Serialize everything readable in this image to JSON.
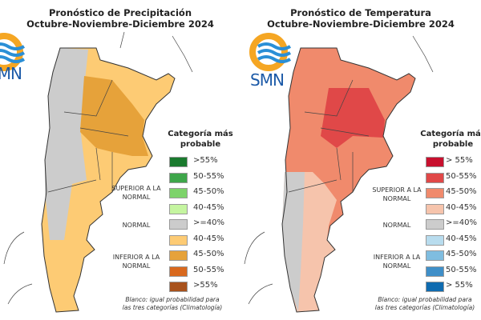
{
  "panels": [
    {
      "title_line1": "Pronóstico de Precipitación",
      "title_line2": "Octubre-Noviembre-Diciembre 2024",
      "logo_text": "SMN",
      "legend": {
        "title_line1": "Categoría más",
        "title_line2": "probable",
        "groups": [
          "SUPERIOR A LA NORMAL",
          "NORMAL",
          "INFERIOR A LA NORMAL"
        ],
        "items": [
          {
            "label": ">55%",
            "color": "#1a7a2e"
          },
          {
            "label": "50-55%",
            "color": "#3ea64a"
          },
          {
            "label": "45-50%",
            "color": "#7dd36a"
          },
          {
            "label": "40-45%",
            "color": "#c5f5a0"
          },
          {
            "label": ">=40%",
            "color": "#cccccc"
          },
          {
            "label": "40-45%",
            "color": "#fdcb74"
          },
          {
            "label": "45-50%",
            "color": "#e6a23a"
          },
          {
            "label": "50-55%",
            "color": "#d9691e"
          },
          {
            "label": ">55%",
            "color": "#a8521c"
          }
        ],
        "note_line1": "Blanco: igual probabilidad para",
        "note_line2": "las tres categorías (Climatología)"
      }
    },
    {
      "title_line1": "Pronóstico de Temperatura",
      "title_line2": "Octubre-Noviembre-Diciembre 2024",
      "logo_text": "SMN",
      "legend": {
        "title_line1": "Categoría más",
        "title_line2": "probable",
        "groups": [
          "SUPERIOR A LA NORMAL",
          "NORMAL",
          "INFERIOR A LA NORMAL"
        ],
        "items": [
          {
            "label": "> 55%",
            "color": "#c8102e"
          },
          {
            "label": "50-55%",
            "color": "#e04848"
          },
          {
            "label": "45-50%",
            "color": "#f08a6c"
          },
          {
            "label": "40-45%",
            "color": "#f6c4ac"
          },
          {
            "label": ">=40%",
            "color": "#cccccc"
          },
          {
            "label": "40-45%",
            "color": "#b8dcee"
          },
          {
            "label": "45-50%",
            "color": "#7fbde0"
          },
          {
            "label": "50-55%",
            "color": "#3f8fc8"
          },
          {
            "label": "> 55%",
            "color": "#0f6bb0"
          }
        ],
        "note_line1": "Blanco: igual probabilidad para",
        "note_line2": "las tres categorías (Climatología)"
      }
    }
  ]
}
